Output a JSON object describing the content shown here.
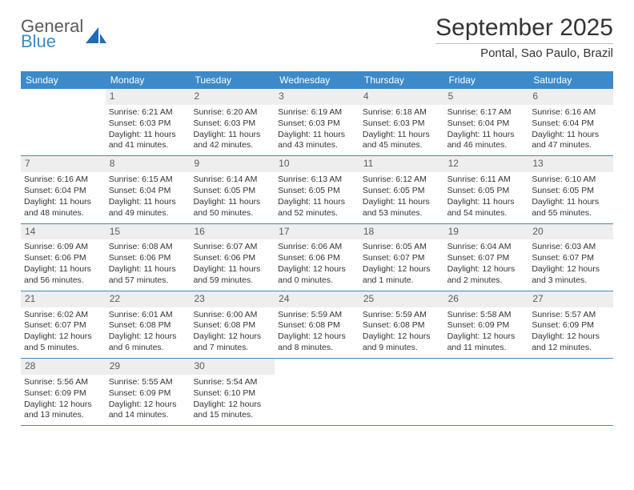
{
  "logo": {
    "general": "General",
    "blue": "Blue",
    "mark_color": "#1e6bb8"
  },
  "title": "September 2025",
  "location": "Pontal, Sao Paulo, Brazil",
  "colors": {
    "header_bar": "#3c8ac9",
    "daynum_bg": "#eeeeee",
    "week_border": "#3c8ac9",
    "text": "#333333"
  },
  "day_names": [
    "Sunday",
    "Monday",
    "Tuesday",
    "Wednesday",
    "Thursday",
    "Friday",
    "Saturday"
  ],
  "weeks": [
    [
      null,
      {
        "n": "1",
        "sr": "6:21 AM",
        "ss": "6:03 PM",
        "dl": "11 hours and 41 minutes."
      },
      {
        "n": "2",
        "sr": "6:20 AM",
        "ss": "6:03 PM",
        "dl": "11 hours and 42 minutes."
      },
      {
        "n": "3",
        "sr": "6:19 AM",
        "ss": "6:03 PM",
        "dl": "11 hours and 43 minutes."
      },
      {
        "n": "4",
        "sr": "6:18 AM",
        "ss": "6:03 PM",
        "dl": "11 hours and 45 minutes."
      },
      {
        "n": "5",
        "sr": "6:17 AM",
        "ss": "6:04 PM",
        "dl": "11 hours and 46 minutes."
      },
      {
        "n": "6",
        "sr": "6:16 AM",
        "ss": "6:04 PM",
        "dl": "11 hours and 47 minutes."
      }
    ],
    [
      {
        "n": "7",
        "sr": "6:16 AM",
        "ss": "6:04 PM",
        "dl": "11 hours and 48 minutes."
      },
      {
        "n": "8",
        "sr": "6:15 AM",
        "ss": "6:04 PM",
        "dl": "11 hours and 49 minutes."
      },
      {
        "n": "9",
        "sr": "6:14 AM",
        "ss": "6:05 PM",
        "dl": "11 hours and 50 minutes."
      },
      {
        "n": "10",
        "sr": "6:13 AM",
        "ss": "6:05 PM",
        "dl": "11 hours and 52 minutes."
      },
      {
        "n": "11",
        "sr": "6:12 AM",
        "ss": "6:05 PM",
        "dl": "11 hours and 53 minutes."
      },
      {
        "n": "12",
        "sr": "6:11 AM",
        "ss": "6:05 PM",
        "dl": "11 hours and 54 minutes."
      },
      {
        "n": "13",
        "sr": "6:10 AM",
        "ss": "6:05 PM",
        "dl": "11 hours and 55 minutes."
      }
    ],
    [
      {
        "n": "14",
        "sr": "6:09 AM",
        "ss": "6:06 PM",
        "dl": "11 hours and 56 minutes."
      },
      {
        "n": "15",
        "sr": "6:08 AM",
        "ss": "6:06 PM",
        "dl": "11 hours and 57 minutes."
      },
      {
        "n": "16",
        "sr": "6:07 AM",
        "ss": "6:06 PM",
        "dl": "11 hours and 59 minutes."
      },
      {
        "n": "17",
        "sr": "6:06 AM",
        "ss": "6:06 PM",
        "dl": "12 hours and 0 minutes."
      },
      {
        "n": "18",
        "sr": "6:05 AM",
        "ss": "6:07 PM",
        "dl": "12 hours and 1 minute."
      },
      {
        "n": "19",
        "sr": "6:04 AM",
        "ss": "6:07 PM",
        "dl": "12 hours and 2 minutes."
      },
      {
        "n": "20",
        "sr": "6:03 AM",
        "ss": "6:07 PM",
        "dl": "12 hours and 3 minutes."
      }
    ],
    [
      {
        "n": "21",
        "sr": "6:02 AM",
        "ss": "6:07 PM",
        "dl": "12 hours and 5 minutes."
      },
      {
        "n": "22",
        "sr": "6:01 AM",
        "ss": "6:08 PM",
        "dl": "12 hours and 6 minutes."
      },
      {
        "n": "23",
        "sr": "6:00 AM",
        "ss": "6:08 PM",
        "dl": "12 hours and 7 minutes."
      },
      {
        "n": "24",
        "sr": "5:59 AM",
        "ss": "6:08 PM",
        "dl": "12 hours and 8 minutes."
      },
      {
        "n": "25",
        "sr": "5:59 AM",
        "ss": "6:08 PM",
        "dl": "12 hours and 9 minutes."
      },
      {
        "n": "26",
        "sr": "5:58 AM",
        "ss": "6:09 PM",
        "dl": "12 hours and 11 minutes."
      },
      {
        "n": "27",
        "sr": "5:57 AM",
        "ss": "6:09 PM",
        "dl": "12 hours and 12 minutes."
      }
    ],
    [
      {
        "n": "28",
        "sr": "5:56 AM",
        "ss": "6:09 PM",
        "dl": "12 hours and 13 minutes."
      },
      {
        "n": "29",
        "sr": "5:55 AM",
        "ss": "6:09 PM",
        "dl": "12 hours and 14 minutes."
      },
      {
        "n": "30",
        "sr": "5:54 AM",
        "ss": "6:10 PM",
        "dl": "12 hours and 15 minutes."
      },
      null,
      null,
      null,
      null
    ]
  ],
  "labels": {
    "sunrise": "Sunrise:",
    "sunset": "Sunset:",
    "daylight": "Daylight:"
  }
}
